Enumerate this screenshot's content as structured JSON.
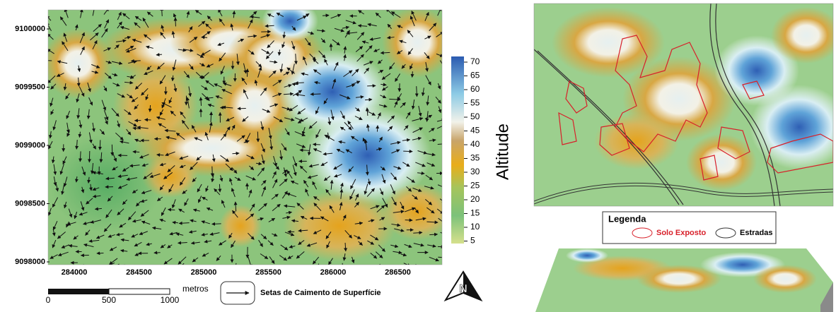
{
  "map": {
    "y_labels": [
      "9100000",
      "9099500",
      "9099000",
      "9098500",
      "9098000"
    ],
    "x_labels": [
      "284000",
      "284500",
      "285000",
      "285500",
      "286000",
      "286500"
    ]
  },
  "colorbar": {
    "title": "Altitude",
    "ticks": [
      "70",
      "65",
      "60",
      "55",
      "50",
      "45",
      "40",
      "35",
      "30",
      "25",
      "20",
      "15",
      "10",
      "5"
    ]
  },
  "scale_bar": {
    "labels": [
      "0",
      "500",
      "1000"
    ],
    "unit": "metros"
  },
  "arrow_legend": "Setas de Caimento de Superfície",
  "north": "N",
  "legend": {
    "title": "Legenda",
    "items": [
      "Solo Exposto",
      "Estradas"
    ]
  }
}
